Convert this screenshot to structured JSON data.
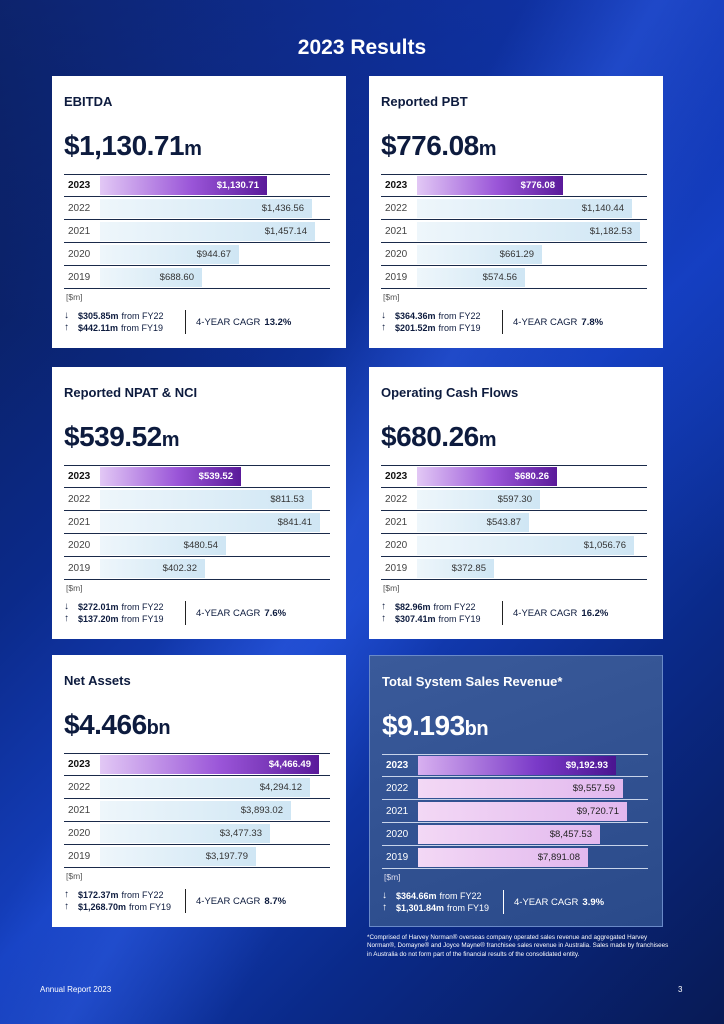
{
  "title": "2023 Results",
  "cards": [
    {
      "title": "EBITDA",
      "value": "$1,130.71",
      "unit": "m",
      "rows": [
        {
          "year": "2023",
          "label": "$1,130.71",
          "value": 1130.71
        },
        {
          "year": "2022",
          "label": "$1,436.56",
          "value": 1436.56
        },
        {
          "year": "2021",
          "label": "$1,457.14",
          "value": 1457.14
        },
        {
          "year": "2020",
          "label": "$944.67",
          "value": 944.67
        },
        {
          "year": "2019",
          "label": "$688.60",
          "value": 688.6
        }
      ],
      "unit_note": "[$m]",
      "change1": {
        "dir": "down",
        "amount": "$305.85m",
        "text": "from FY22"
      },
      "change2": {
        "dir": "up",
        "amount": "$442.11m",
        "text": "from FY19"
      },
      "cagr_label": "4-YEAR CAGR",
      "cagr_value": "13.2%"
    },
    {
      "title": "Reported PBT",
      "value": "$776.08",
      "unit": "m",
      "rows": [
        {
          "year": "2023",
          "label": "$776.08",
          "value": 776.08
        },
        {
          "year": "2022",
          "label": "$1,140.44",
          "value": 1140.44
        },
        {
          "year": "2021",
          "label": "$1,182.53",
          "value": 1182.53
        },
        {
          "year": "2020",
          "label": "$661.29",
          "value": 661.29
        },
        {
          "year": "2019",
          "label": "$574.56",
          "value": 574.56
        }
      ],
      "unit_note": "[$m]",
      "change1": {
        "dir": "down",
        "amount": "$364.36m",
        "text": "from FY22"
      },
      "change2": {
        "dir": "up",
        "amount": "$201.52m",
        "text": "from FY19"
      },
      "cagr_label": "4-YEAR CAGR",
      "cagr_value": "7.8%"
    },
    {
      "title": "Reported NPAT & NCI",
      "value": "$539.52",
      "unit": "m",
      "rows": [
        {
          "year": "2023",
          "label": "$539.52",
          "value": 539.52
        },
        {
          "year": "2022",
          "label": "$811.53",
          "value": 811.53
        },
        {
          "year": "2021",
          "label": "$841.41",
          "value": 841.41
        },
        {
          "year": "2020",
          "label": "$480.54",
          "value": 480.54
        },
        {
          "year": "2019",
          "label": "$402.32",
          "value": 402.32
        }
      ],
      "unit_note": "[$m]",
      "change1": {
        "dir": "down",
        "amount": "$272.01m",
        "text": "from FY22"
      },
      "change2": {
        "dir": "up",
        "amount": "$137.20m",
        "text": "from FY19"
      },
      "cagr_label": "4-YEAR CAGR",
      "cagr_value": "7.6%"
    },
    {
      "title": "Operating Cash Flows",
      "value": "$680.26",
      "unit": "m",
      "rows": [
        {
          "year": "2023",
          "label": "$680.26",
          "value": 680.26
        },
        {
          "year": "2022",
          "label": "$597.30",
          "value": 597.3
        },
        {
          "year": "2021",
          "label": "$543.87",
          "value": 543.87
        },
        {
          "year": "2020",
          "label": "$1,056.76",
          "value": 1056.76
        },
        {
          "year": "2019",
          "label": "$372.85",
          "value": 372.85
        }
      ],
      "unit_note": "[$m]",
      "change1": {
        "dir": "up",
        "amount": "$82.96m",
        "text": "from FY22"
      },
      "change2": {
        "dir": "up",
        "amount": "$307.41m",
        "text": "from FY19"
      },
      "cagr_label": "4-YEAR CAGR",
      "cagr_value": "16.2%"
    },
    {
      "title": "Net Assets",
      "value": "$4.466",
      "unit": "bn",
      "rows": [
        {
          "year": "2023",
          "label": "$4,466.49",
          "value": 4466.49
        },
        {
          "year": "2022",
          "label": "$4,294.12",
          "value": 4294.12
        },
        {
          "year": "2021",
          "label": "$3,893.02",
          "value": 3893.02
        },
        {
          "year": "2020",
          "label": "$3,477.33",
          "value": 3477.33
        },
        {
          "year": "2019",
          "label": "$3,197.79",
          "value": 3197.79
        }
      ],
      "unit_note": "[$m]",
      "change1": {
        "dir": "up",
        "amount": "$172.37m",
        "text": "from FY22"
      },
      "change2": {
        "dir": "up",
        "amount": "$1,268.70m",
        "text": "from FY19"
      },
      "cagr_label": "4-YEAR CAGR",
      "cagr_value": "8.7%"
    },
    {
      "title": "Total System Sales Revenue*",
      "value": "$9.193",
      "unit": "bn",
      "rows": [
        {
          "year": "2023",
          "label": "$9,192.93",
          "value": 9192.93
        },
        {
          "year": "2022",
          "label": "$9,557.59",
          "value": 9557.59
        },
        {
          "year": "2021",
          "label": "$9,720.71",
          "value": 9720.71
        },
        {
          "year": "2020",
          "label": "$8,457.53",
          "value": 8457.53
        },
        {
          "year": "2019",
          "label": "$7,891.08",
          "value": 7891.08
        }
      ],
      "unit_note": "[$m]",
      "change1": {
        "dir": "down",
        "amount": "$364.66m",
        "text": "from FY22"
      },
      "change2": {
        "dir": "up",
        "amount": "$1,301.84m",
        "text": "from FY19"
      },
      "cagr_label": "4-YEAR CAGR",
      "cagr_value": "3.9%"
    }
  ],
  "footnote": "*Comprised of Harvey Norman® overseas company operated sales revenue and aggregated Harvey Norman®, Domayne® and Joyce Mayne® franchisee sales revenue in Australia. Sales made by franchisees in Australia do not form part of the financial results of the consolidated entity.",
  "footer_left": "Annual Report 2023",
  "footer_right": "3"
}
